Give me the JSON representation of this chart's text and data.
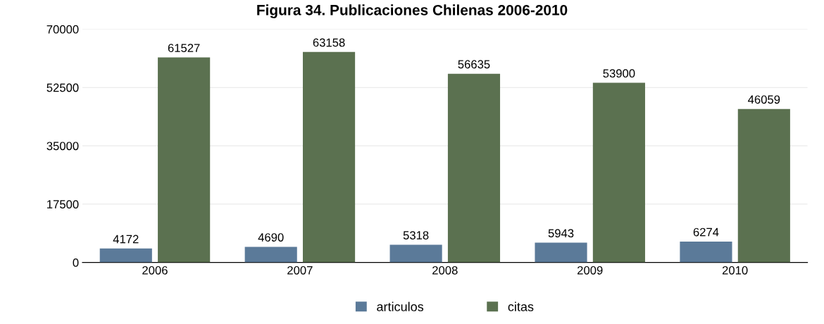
{
  "chart_data": {
    "type": "bar",
    "title": "Figura 34. Publicaciones Chilenas 2006-2010",
    "categories": [
      "2006",
      "2007",
      "2008",
      "2009",
      "2010"
    ],
    "series": [
      {
        "name": "articulos",
        "color": "#5b7a99",
        "values": [
          4172,
          4690,
          5318,
          5943,
          6274
        ]
      },
      {
        "name": "citas",
        "color": "#5b7150",
        "values": [
          61527,
          63158,
          56635,
          53900,
          46059
        ]
      }
    ],
    "ylim": [
      0,
      70000
    ],
    "yticks": [
      0,
      17500,
      35000,
      52500,
      70000
    ],
    "grid": "y",
    "legend": "bottom",
    "data_labels": true
  }
}
